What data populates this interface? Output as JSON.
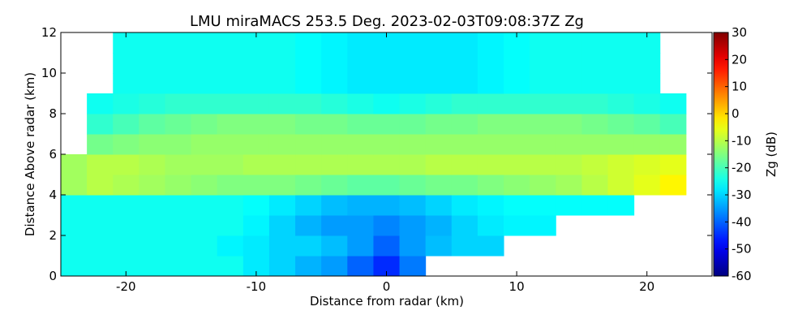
{
  "chart_data": {
    "type": "heatmap",
    "title": "LMU miraMACS 253.5 Deg. 2023-02-03T09:08:37Z  Zg",
    "x_label": "Distance from radar (km)",
    "y_label": "Distance Above radar  (km)",
    "colorbar_label": "Zg (dB)",
    "colormap": "jet",
    "x": [
      -24,
      -22,
      -20,
      -18,
      -16,
      -14,
      -12,
      -10,
      -8,
      -6,
      -4,
      -2,
      0,
      2,
      4,
      6,
      8,
      10,
      12,
      14,
      16,
      18,
      20,
      22,
      24
    ],
    "y": [
      0.5,
      1.5,
      2.5,
      3.5,
      4.5,
      5.5,
      6.5,
      7.5,
      8.5,
      9.5,
      10.5,
      11.5
    ],
    "z": [
      [
        -25,
        -25,
        -25,
        -25,
        -25,
        -25,
        -25,
        -28,
        -30,
        -33,
        -35,
        -40,
        -45,
        -38,
        null,
        null,
        null,
        null,
        null,
        null,
        null,
        null,
        null,
        null,
        null
      ],
      [
        -25,
        -25,
        -25,
        -25,
        -25,
        -25,
        -27,
        -28,
        -30,
        -30,
        -32,
        -35,
        -40,
        -35,
        -32,
        -30,
        -30,
        null,
        null,
        null,
        null,
        null,
        null,
        null,
        null
      ],
      [
        -25,
        -25,
        -25,
        -25,
        -25,
        -25,
        -25,
        -27,
        -30,
        -33,
        -35,
        -35,
        -37,
        -35,
        -33,
        -30,
        -28,
        -27,
        -27,
        null,
        null,
        null,
        null,
        null,
        null
      ],
      [
        -25,
        -25,
        -25,
        -25,
        -25,
        -25,
        -25,
        -26,
        -28,
        -30,
        -32,
        -33,
        -33,
        -32,
        -30,
        -28,
        -27,
        -26,
        -26,
        -26,
        -26,
        -26,
        null,
        null,
        null
      ],
      [
        -12,
        -10,
        -11,
        -12,
        -13,
        -14,
        -15,
        -15,
        -15,
        -16,
        -17,
        -18,
        -18,
        -17,
        -16,
        -16,
        -15,
        -14,
        -13,
        -12,
        -10,
        -8,
        -6,
        -3,
        null
      ],
      [
        -12,
        -10,
        -10,
        -11,
        -12,
        -12,
        -12,
        -11,
        -11,
        -11,
        -11,
        -11,
        -11,
        -11,
        -10,
        -10,
        -10,
        -10,
        -10,
        -10,
        -9,
        -8,
        -7,
        -6,
        null
      ],
      [
        null,
        -16,
        -15,
        -14,
        -14,
        -13,
        -13,
        -13,
        -13,
        -13,
        -13,
        -13,
        -13,
        -13,
        -13,
        -13,
        -13,
        -13,
        -13,
        -13,
        -13,
        -13,
        -13,
        -13,
        null
      ],
      [
        null,
        -22,
        -20,
        -18,
        -17,
        -16,
        -15,
        -15,
        -15,
        -16,
        -16,
        -17,
        -17,
        -17,
        -16,
        -16,
        -15,
        -15,
        -15,
        -15,
        -16,
        -17,
        -18,
        -20,
        null
      ],
      [
        null,
        -25,
        -24,
        -23,
        -22,
        -22,
        -22,
        -22,
        -22,
        -22,
        -23,
        -24,
        -25,
        -24,
        -23,
        -22,
        -22,
        -22,
        -22,
        -22,
        -22,
        -23,
        -24,
        -25,
        null
      ],
      [
        null,
        null,
        -25,
        -25,
        -25,
        -25,
        -25,
        -25,
        -25,
        -26,
        -27,
        -28,
        -28,
        -28,
        -28,
        -28,
        -27,
        -26,
        -25,
        -25,
        -25,
        -25,
        -25,
        null,
        null
      ],
      [
        null,
        null,
        -25,
        -25,
        -25,
        -25,
        -25,
        -25,
        -25,
        -26,
        -27,
        -28,
        -28,
        -28,
        -28,
        -28,
        -27,
        -26,
        -25,
        -25,
        -25,
        -25,
        -25,
        null,
        null
      ],
      [
        null,
        null,
        -25,
        -25,
        -25,
        -25,
        -25,
        -25,
        -25,
        -26,
        -27,
        -28,
        -28,
        -28,
        -28,
        -28,
        -27,
        -26,
        -25,
        -25,
        -25,
        -25,
        -25,
        null,
        null
      ]
    ],
    "cell_width": 2,
    "cell_height": 1,
    "xlim": [
      -25,
      25
    ],
    "ylim": [
      0,
      12
    ],
    "xticks": [
      -20,
      -10,
      0,
      10,
      20
    ],
    "yticks": [
      0,
      2,
      4,
      6,
      8,
      10,
      12
    ],
    "clim": [
      -60,
      30
    ],
    "cticks": [
      -60,
      -50,
      -40,
      -30,
      -20,
      -10,
      0,
      10,
      20,
      30
    ]
  }
}
